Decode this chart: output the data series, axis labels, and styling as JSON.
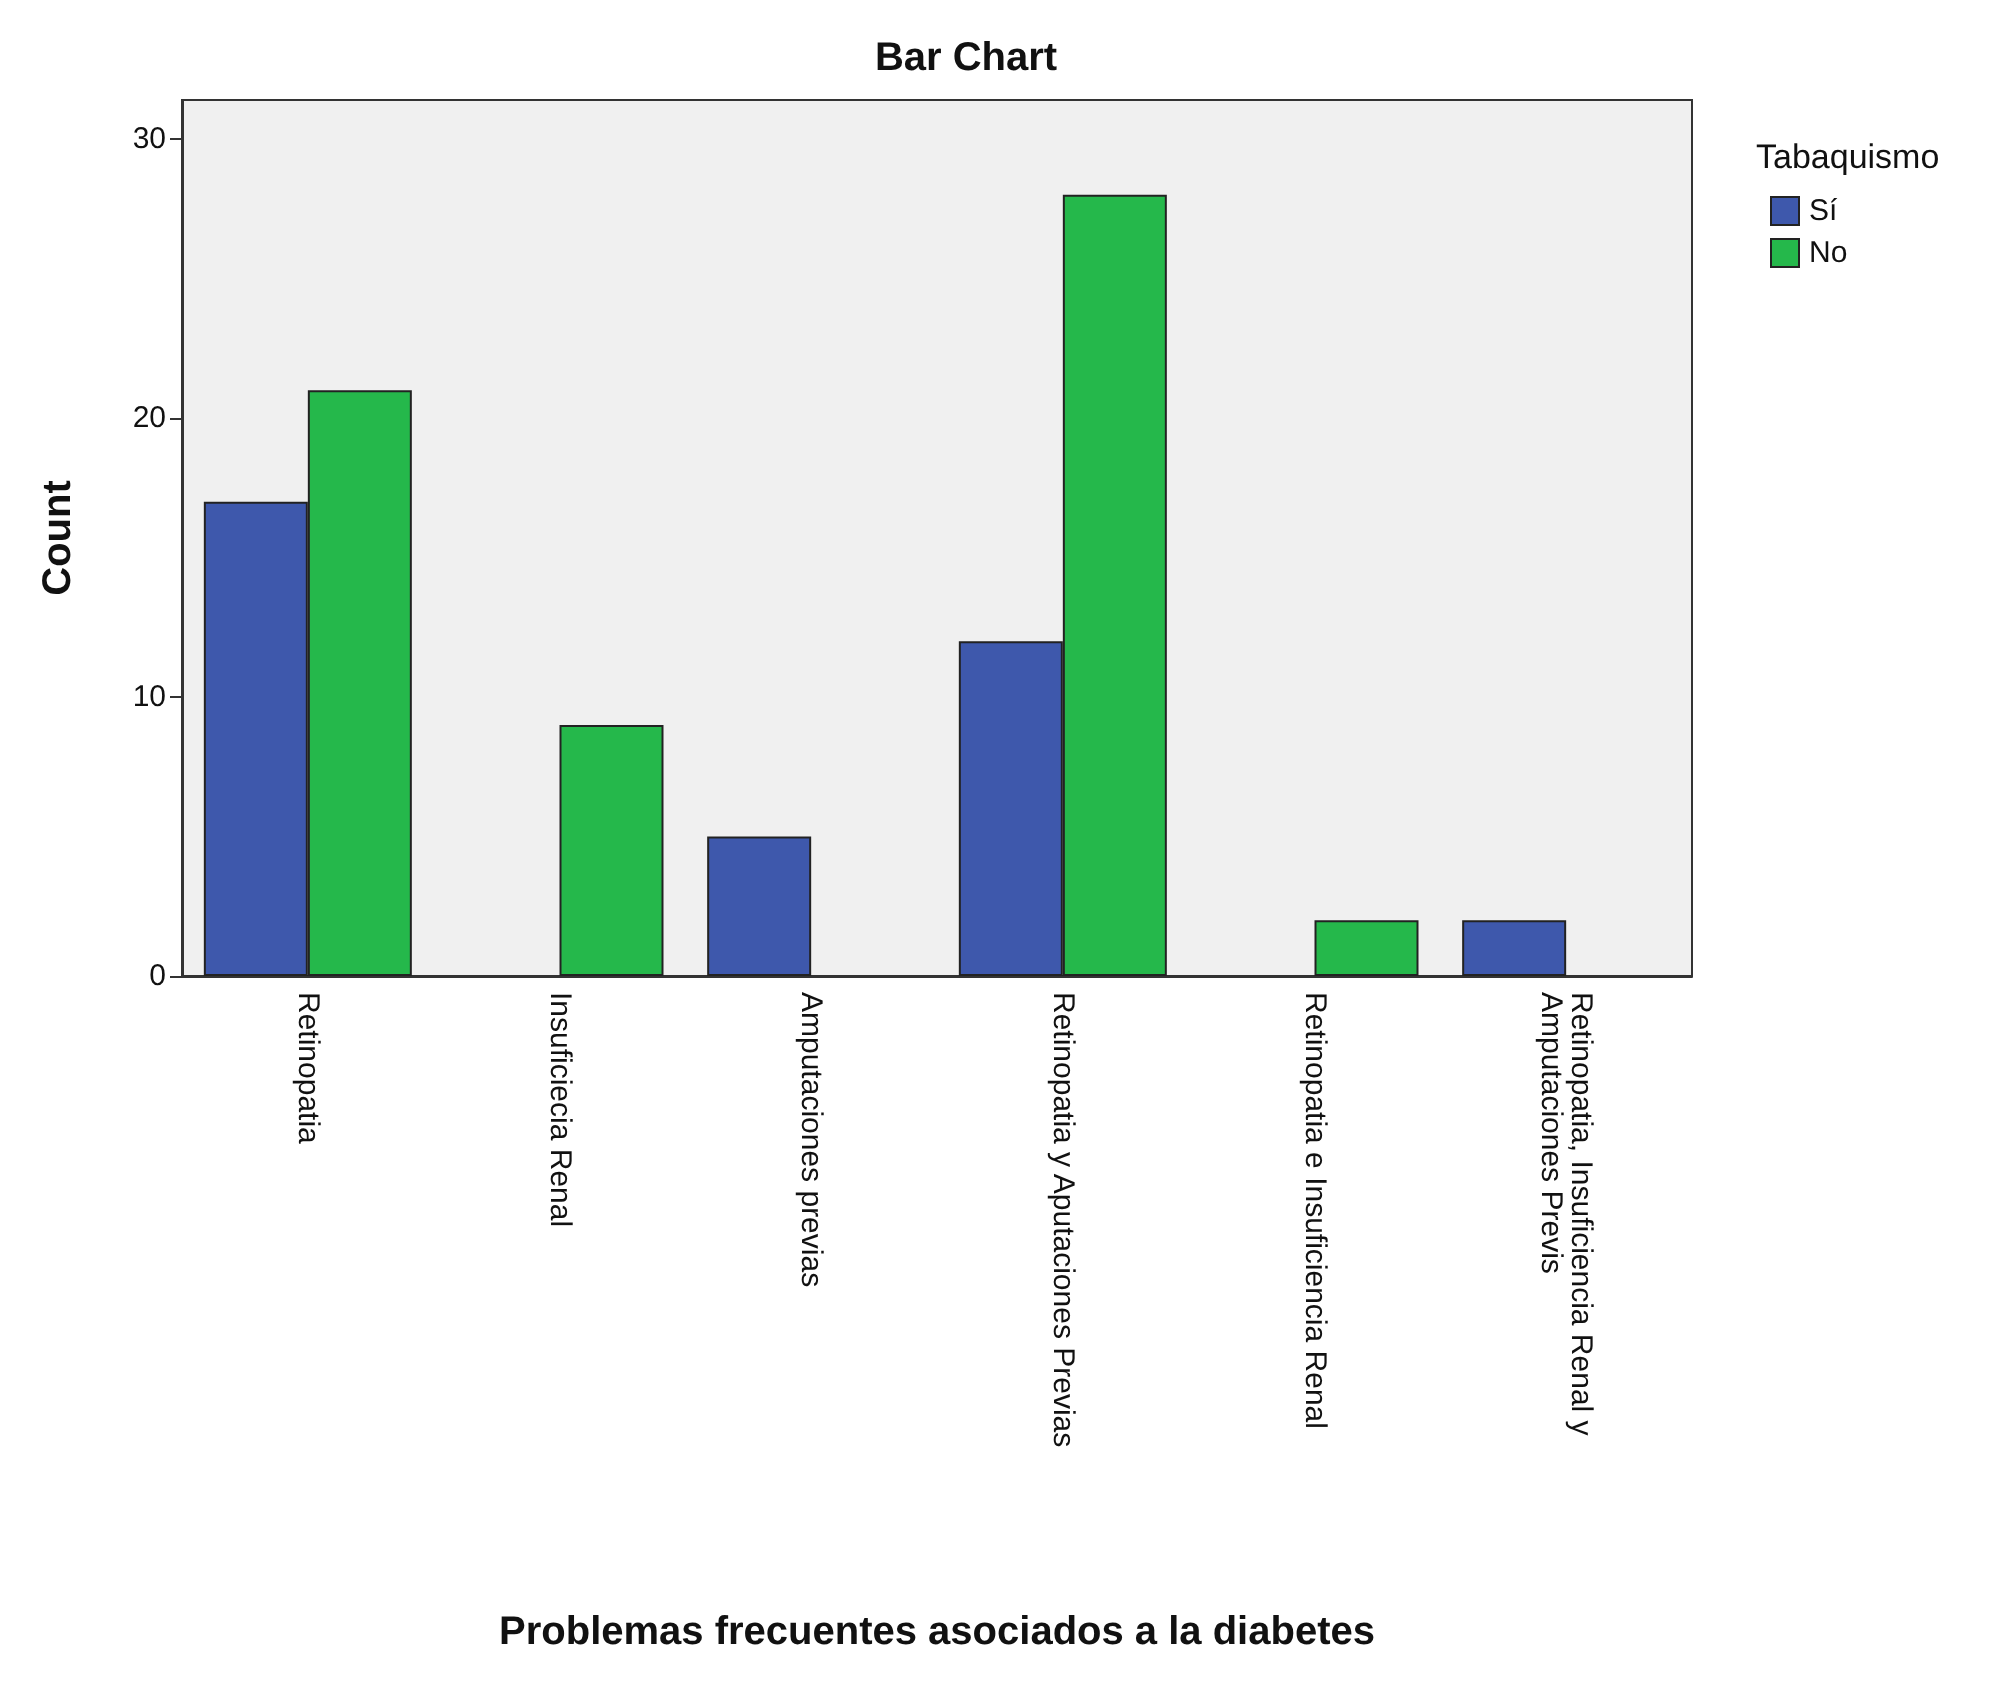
{
  "chart_data": {
    "type": "bar",
    "title": "Bar Chart",
    "xlabel": "Problemas frecuentes asociados a la diabetes",
    "ylabel": "Count",
    "legend_title": "Tabaquismo",
    "categories": [
      "Retinopatia",
      "Insuficiecia Renal",
      "Amputaciones previas",
      "Retinopatia y Aputaciones Previas",
      "Retinopatia e Insuficiencia Renal",
      "Retinopatia, Insuficiencia Renal y Amputaciones Previs"
    ],
    "series": [
      {
        "name": "Sí",
        "color": "#3e58ac",
        "values": [
          17,
          null,
          5,
          12,
          null,
          2
        ]
      },
      {
        "name": "No",
        "color": "#25b84b",
        "values": [
          21,
          9,
          null,
          28,
          2,
          null
        ]
      }
    ],
    "ylim": [
      0,
      31.4
    ],
    "yticks": [
      0,
      10,
      20,
      30
    ],
    "grid": false,
    "legend": "top right"
  }
}
